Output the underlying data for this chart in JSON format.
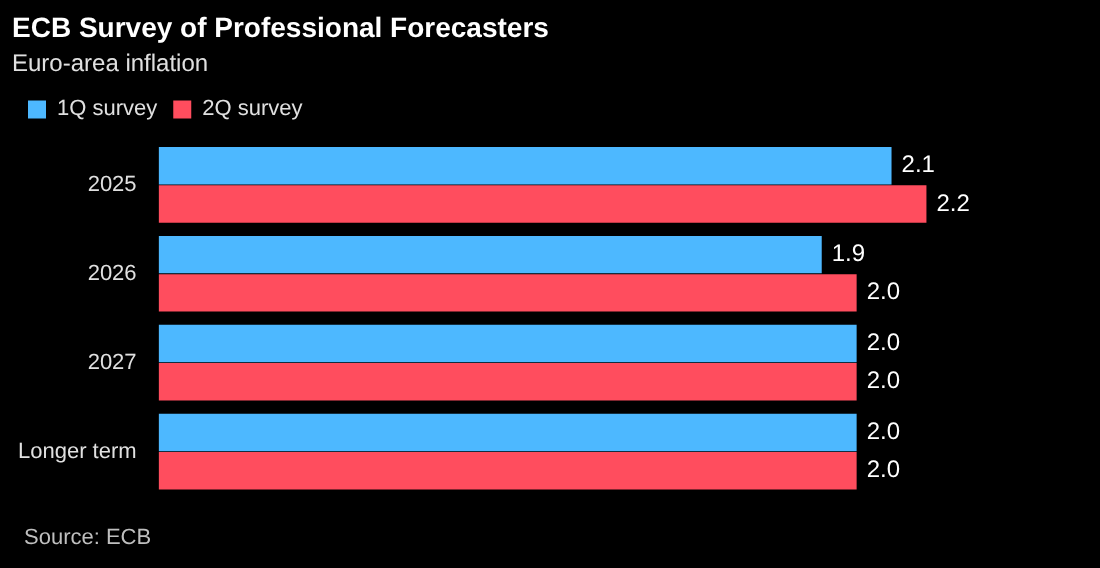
{
  "chart_data": {
    "type": "bar",
    "orientation": "horizontal",
    "title": "ECB Survey of Professional Forecasters",
    "subtitle": "Euro-area inflation",
    "categories": [
      "2025",
      "2026",
      "2027",
      "Longer term"
    ],
    "series": [
      {
        "name": "1Q survey",
        "color": "#4db8ff",
        "values": [
          2.1,
          1.9,
          2.0,
          2.0
        ],
        "value_labels": [
          "2.1",
          "1.9",
          "2.0",
          "2.0"
        ]
      },
      {
        "name": "2Q survey",
        "color": "#ff4d5e",
        "values": [
          2.2,
          2.0,
          2.0,
          2.0
        ],
        "value_labels": [
          "2.2",
          "2.0",
          "2.0",
          "2.0"
        ]
      }
    ],
    "legend": "top left",
    "tick_labels": "y",
    "annotations": [
      "Source: ECB"
    ]
  }
}
